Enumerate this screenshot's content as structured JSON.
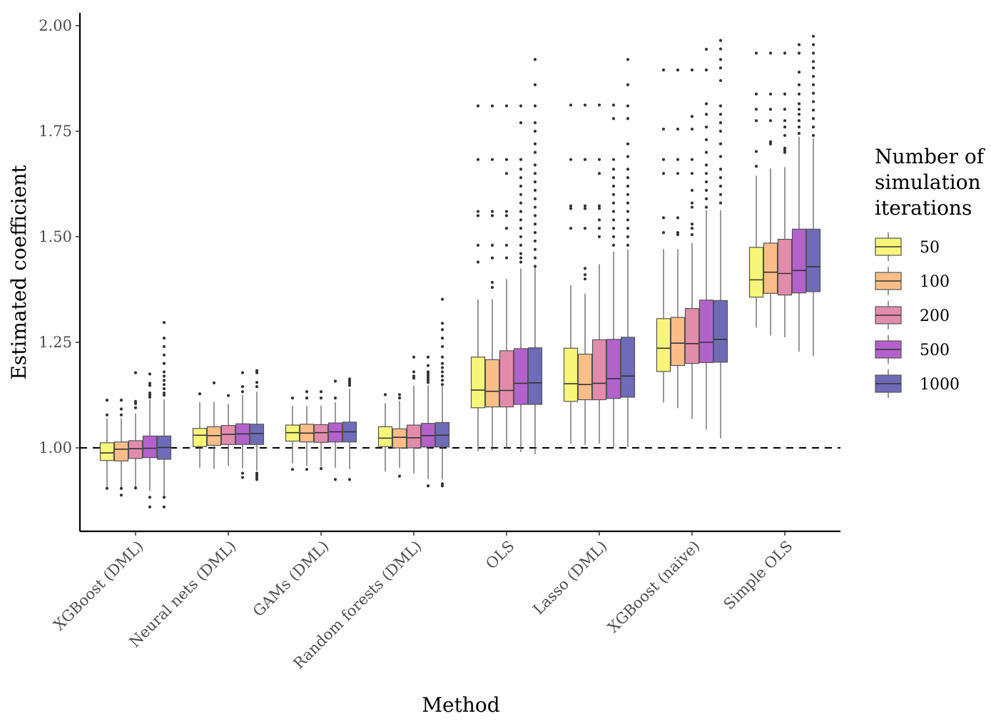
{
  "chart_data": {
    "type": "boxplot",
    "title": "",
    "xlabel": "Method",
    "ylabel": "Estimated coefficient",
    "ylim": [
      0.8,
      2.03
    ],
    "yticks": [
      1.0,
      1.25,
      1.5,
      1.75,
      2.0
    ],
    "ytick_labels": [
      "1.00",
      "1.25",
      "1.50",
      "1.75",
      "2.00"
    ],
    "reference_line": {
      "y": 1.0,
      "style": "dashed"
    },
    "grid": false,
    "categories": [
      "XGBoost (DML)",
      "Neural nets (DML)",
      "GAMs (DML)",
      "Random forests (DML)",
      "OLS",
      "Lasso (DML)",
      "XGBoost (naive)",
      "Simple OLS"
    ],
    "legend": {
      "title_lines": [
        "Number of",
        "simulation",
        "iterations"
      ],
      "placement": "right"
    },
    "series": [
      {
        "name": "50",
        "color": "#F6F67A",
        "boxes": [
          {
            "whislo": 0.904,
            "q1": 0.97,
            "med": 0.988,
            "q3": 1.012,
            "whishi": 1.07,
            "fliers": [
              0.904,
              1.078,
              1.113
            ]
          },
          {
            "whislo": 0.953,
            "q1": 1.003,
            "med": 1.03,
            "q3": 1.046,
            "whishi": 1.108,
            "fliers": [
              1.128
            ]
          },
          {
            "whislo": 0.963,
            "q1": 1.016,
            "med": 1.036,
            "q3": 1.054,
            "whishi": 1.1,
            "fliers": [
              0.949,
              1.118
            ]
          },
          {
            "whislo": 0.944,
            "q1": 1.003,
            "med": 1.023,
            "q3": 1.05,
            "whishi": 1.106,
            "fliers": [
              1.126
            ]
          },
          {
            "whislo": 0.992,
            "q1": 1.095,
            "med": 1.137,
            "q3": 1.215,
            "whishi": 1.352,
            "fliers": [
              1.44,
              1.48,
              1.55,
              1.56,
              1.683,
              1.81
            ]
          },
          {
            "whislo": 1.01,
            "q1": 1.11,
            "med": 1.152,
            "q3": 1.236,
            "whishi": 1.385,
            "fliers": [
              1.52,
              1.567,
              1.573,
              1.683,
              1.812
            ]
          },
          {
            "whislo": 1.107,
            "q1": 1.181,
            "med": 1.236,
            "q3": 1.306,
            "whishi": 1.471,
            "fliers": [
              1.51,
              1.545,
              1.65,
              1.683,
              1.755,
              1.895
            ]
          },
          {
            "whislo": 1.285,
            "q1": 1.357,
            "med": 1.398,
            "q3": 1.475,
            "whishi": 1.645,
            "fliers": [
              1.667,
              1.702,
              1.775,
              1.802,
              1.838,
              1.935
            ]
          }
        ]
      },
      {
        "name": "100",
        "color": "#FBBE88",
        "boxes": [
          {
            "whislo": 0.905,
            "q1": 0.969,
            "med": 0.997,
            "q3": 1.014,
            "whishi": 1.07,
            "fliers": [
              0.888,
              0.904,
              1.078,
              1.092,
              1.113
            ]
          },
          {
            "whislo": 0.95,
            "q1": 1.006,
            "med": 1.029,
            "q3": 1.05,
            "whishi": 1.109,
            "fliers": [
              1.154
            ]
          },
          {
            "whislo": 0.957,
            "q1": 1.014,
            "med": 1.035,
            "q3": 1.056,
            "whishi": 1.099,
            "fliers": [
              0.949,
              1.118,
              1.133
            ]
          },
          {
            "whislo": 0.953,
            "q1": 1.0,
            "med": 1.025,
            "q3": 1.045,
            "whishi": 1.111,
            "fliers": [
              0.933,
              1.118,
              1.126
            ]
          },
          {
            "whislo": 0.994,
            "q1": 1.097,
            "med": 1.134,
            "q3": 1.209,
            "whishi": 1.352,
            "fliers": [
              1.38,
              1.392,
              1.45,
              1.48,
              1.55,
              1.56,
              1.683,
              1.81
            ]
          },
          {
            "whislo": 1.007,
            "q1": 1.114,
            "med": 1.15,
            "q3": 1.222,
            "whishi": 1.365,
            "fliers": [
              1.4,
              1.41,
              1.425,
              1.52,
              1.567,
              1.573,
              1.683,
              1.812
            ]
          },
          {
            "whislo": 1.094,
            "q1": 1.195,
            "med": 1.248,
            "q3": 1.309,
            "whishi": 1.471,
            "fliers": [
              1.505,
              1.51,
              1.545,
              1.65,
              1.683,
              1.755,
              1.895
            ]
          },
          {
            "whislo": 1.266,
            "q1": 1.366,
            "med": 1.416,
            "q3": 1.485,
            "whishi": 1.662,
            "fliers": [
              1.72,
              1.725,
              1.775,
              1.802,
              1.838,
              1.935
            ]
          }
        ]
      },
      {
        "name": "200",
        "color": "#E28CAC",
        "boxes": [
          {
            "whislo": 0.906,
            "q1": 0.975,
            "med": 0.998,
            "q3": 1.017,
            "whishi": 1.081,
            "fliers": [
              0.905,
              1.095,
              1.105,
              1.11,
              1.178
            ]
          },
          {
            "whislo": 0.958,
            "q1": 1.008,
            "med": 1.032,
            "q3": 1.053,
            "whishi": 1.104,
            "fliers": [
              1.124
            ]
          },
          {
            "whislo": 0.956,
            "q1": 1.013,
            "med": 1.036,
            "q3": 1.055,
            "whishi": 1.1,
            "fliers": [
              0.951,
              1.118,
              1.133
            ]
          },
          {
            "whislo": 0.939,
            "q1": 1.0,
            "med": 1.024,
            "q3": 1.054,
            "whishi": 1.147,
            "fliers": [
              1.165,
              1.17,
              1.18,
              1.215
            ]
          },
          {
            "whislo": 0.998,
            "q1": 1.097,
            "med": 1.136,
            "q3": 1.23,
            "whishi": 1.4,
            "fliers": [
              1.45,
              1.48,
              1.52,
              1.55,
              1.56,
              1.65,
              1.683,
              1.81
            ]
          },
          {
            "whislo": 1.01,
            "q1": 1.114,
            "med": 1.153,
            "q3": 1.256,
            "whishi": 1.435,
            "fliers": [
              1.5,
              1.52,
              1.54,
              1.567,
              1.573,
              1.65,
              1.683,
              1.812
            ]
          },
          {
            "whislo": 1.068,
            "q1": 1.2,
            "med": 1.247,
            "q3": 1.33,
            "whishi": 1.485,
            "fliers": [
              1.505,
              1.52,
              1.53,
              1.57,
              1.58,
              1.61,
              1.65,
              1.683,
              1.755,
              1.785,
              1.895
            ]
          },
          {
            "whislo": 1.262,
            "q1": 1.362,
            "med": 1.413,
            "q3": 1.494,
            "whishi": 1.665,
            "fliers": [
              1.7,
              1.705,
              1.71,
              1.74,
              1.76,
              1.775,
              1.802,
              1.838,
              1.935
            ]
          }
        ]
      },
      {
        "name": "500",
        "color": "#B362CC",
        "boxes": [
          {
            "whislo": 0.898,
            "q1": 0.977,
            "med": 0.999,
            "q3": 1.028,
            "whishi": 1.115,
            "fliers": [
              0.883,
              0.86,
              1.12,
              1.125,
              1.13,
              1.148,
              1.153,
              1.175
            ]
          },
          {
            "whislo": 0.952,
            "q1": 1.008,
            "med": 1.033,
            "q3": 1.057,
            "whishi": 1.125,
            "fliers": [
              0.94,
              0.93,
              1.133,
              1.145,
              1.178
            ]
          },
          {
            "whislo": 0.953,
            "q1": 1.014,
            "med": 1.038,
            "q3": 1.059,
            "whishi": 1.108,
            "fliers": [
              0.925,
              1.118,
              1.158
            ]
          },
          {
            "whislo": 0.926,
            "q1": 1.002,
            "med": 1.029,
            "q3": 1.058,
            "whishi": 1.148,
            "fliers": [
              0.91,
              1.155,
              1.16,
              1.165,
              1.17,
              1.175,
              1.18,
              1.195,
              1.215
            ]
          },
          {
            "whislo": 0.99,
            "q1": 1.103,
            "med": 1.153,
            "q3": 1.235,
            "whishi": 1.425,
            "fliers": [
              1.44,
              1.45,
              1.46,
              1.48,
              1.5,
              1.52,
              1.54,
              1.56,
              1.58,
              1.6,
              1.62,
              1.64,
              1.66,
              1.683,
              1.77,
              1.81
            ]
          },
          {
            "whislo": 1.0,
            "q1": 1.117,
            "med": 1.164,
            "q3": 1.257,
            "whishi": 1.465,
            "fliers": [
              1.48,
              1.5,
              1.52,
              1.54,
              1.56,
              1.58,
              1.6,
              1.62,
              1.64,
              1.66,
              1.683,
              1.78,
              1.812
            ]
          },
          {
            "whislo": 1.043,
            "q1": 1.202,
            "med": 1.25,
            "q3": 1.35,
            "whishi": 1.563,
            "fliers": [
              1.57,
              1.59,
              1.61,
              1.63,
              1.65,
              1.67,
              1.7,
              1.73,
              1.76,
              1.79,
              1.815,
              1.895,
              1.944
            ]
          },
          {
            "whislo": 1.228,
            "q1": 1.367,
            "med": 1.42,
            "q3": 1.518,
            "whishi": 1.737,
            "fliers": [
              1.745,
              1.76,
              1.775,
              1.79,
              1.802,
              1.815,
              1.838,
              1.86,
              1.89,
              1.935,
              1.955
            ]
          }
        ]
      },
      {
        "name": "1000",
        "color": "#6E6BB8",
        "boxes": [
          {
            "whislo": 0.885,
            "q1": 0.973,
            "med": 1.001,
            "q3": 1.028,
            "whishi": 1.115,
            "fliers": [
              0.883,
              0.86,
              1.125,
              1.13,
              1.14,
              1.15,
              1.16,
              1.17,
              1.18,
              1.2,
              1.22,
              1.24,
              1.26,
              1.297
            ]
          },
          {
            "whislo": 0.946,
            "q1": 1.008,
            "med": 1.034,
            "q3": 1.056,
            "whishi": 1.133,
            "fliers": [
              0.925,
              0.93,
              0.935,
              0.94,
              1.145,
              1.155,
              1.178,
              1.183
            ]
          },
          {
            "whislo": 0.95,
            "q1": 1.014,
            "med": 1.038,
            "q3": 1.061,
            "whishi": 1.14,
            "fliers": [
              0.925,
              1.148,
              1.153,
              1.158,
              1.163
            ]
          },
          {
            "whislo": 0.925,
            "q1": 1.002,
            "med": 1.03,
            "q3": 1.06,
            "whishi": 1.146,
            "fliers": [
              0.91,
              0.915,
              1.15,
              1.16,
              1.17,
              1.18,
              1.19,
              1.2,
              1.215,
              1.24,
              1.26,
              1.28,
              1.295,
              1.352
            ]
          },
          {
            "whislo": 0.985,
            "q1": 1.103,
            "med": 1.154,
            "q3": 1.237,
            "whishi": 1.428,
            "fliers": [
              1.43,
              1.45,
              1.47,
              1.49,
              1.51,
              1.53,
              1.55,
              1.57,
              1.59,
              1.61,
              1.63,
              1.65,
              1.67,
              1.7,
              1.72,
              1.75,
              1.77,
              1.81,
              1.86,
              1.92
            ]
          },
          {
            "whislo": 1.002,
            "q1": 1.12,
            "med": 1.17,
            "q3": 1.262,
            "whishi": 1.47,
            "fliers": [
              1.48,
              1.5,
              1.52,
              1.54,
              1.56,
              1.58,
              1.6,
              1.62,
              1.64,
              1.66,
              1.69,
              1.72,
              1.78,
              1.81,
              1.86,
              1.92
            ]
          },
          {
            "whislo": 1.022,
            "q1": 1.203,
            "med": 1.257,
            "q3": 1.349,
            "whishi": 1.563,
            "fliers": [
              1.58,
              1.6,
              1.62,
              1.64,
              1.66,
              1.69,
              1.72,
              1.75,
              1.77,
              1.79,
              1.81,
              1.87,
              1.9,
              1.92,
              1.945,
              1.965
            ]
          },
          {
            "whislo": 1.218,
            "q1": 1.37,
            "med": 1.429,
            "q3": 1.518,
            "whishi": 1.733,
            "fliers": [
              1.74,
              1.76,
              1.78,
              1.8,
              1.82,
              1.84,
              1.86,
              1.88,
              1.9,
              1.915,
              1.935,
              1.955,
              1.975
            ]
          }
        ]
      }
    ]
  }
}
